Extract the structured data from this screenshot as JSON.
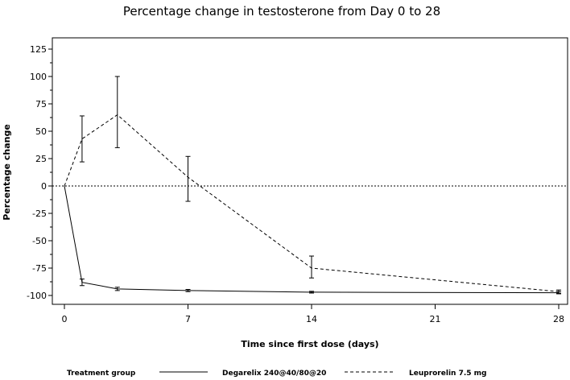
{
  "chart_data": {
    "type": "line",
    "title": "Percentage change in testosterone from Day 0 to 28",
    "xlabel": "Time since first dose (days)",
    "ylabel": "Percentage change",
    "xlim": [
      0,
      28
    ],
    "ylim": [
      -105,
      125
    ],
    "x_ticks": [
      0,
      7,
      14,
      21,
      28
    ],
    "y_ticks": [
      125,
      100,
      75,
      50,
      25,
      0,
      -25,
      -50,
      -75,
      -100
    ],
    "reference_line": {
      "y": 0,
      "style": "dotted"
    },
    "grid": false,
    "legend": {
      "title": "Treatment group",
      "placement": "bottom"
    },
    "series": [
      {
        "name": "Degarelix 240@40/80@20",
        "style": "solid",
        "points": [
          {
            "x": 0,
            "y": 0
          },
          {
            "x": 1,
            "y": -88,
            "low": -91,
            "high": -85
          },
          {
            "x": 3,
            "y": -94,
            "low": -95.5,
            "high": -92.5
          },
          {
            "x": 7,
            "y": -95.5,
            "low": -96.5,
            "high": -94.5
          },
          {
            "x": 14,
            "y": -97,
            "low": -97.8,
            "high": -96.2
          },
          {
            "x": 28,
            "y": -97.5,
            "low": -98.5,
            "high": -96.5
          }
        ]
      },
      {
        "name": "Leuprorelin 7.5 mg",
        "style": "dashed",
        "points": [
          {
            "x": 0,
            "y": 0
          },
          {
            "x": 1,
            "y": 43,
            "low": 22,
            "high": 64
          },
          {
            "x": 3,
            "y": 65,
            "low": 35,
            "high": 100
          },
          {
            "x": 7,
            "y": 8,
            "low": -14,
            "high": 27
          },
          {
            "x": 14,
            "y": -75,
            "low": -84,
            "high": -64
          },
          {
            "x": 28,
            "y": -96.5,
            "low": -98,
            "high": -95
          }
        ]
      }
    ]
  }
}
